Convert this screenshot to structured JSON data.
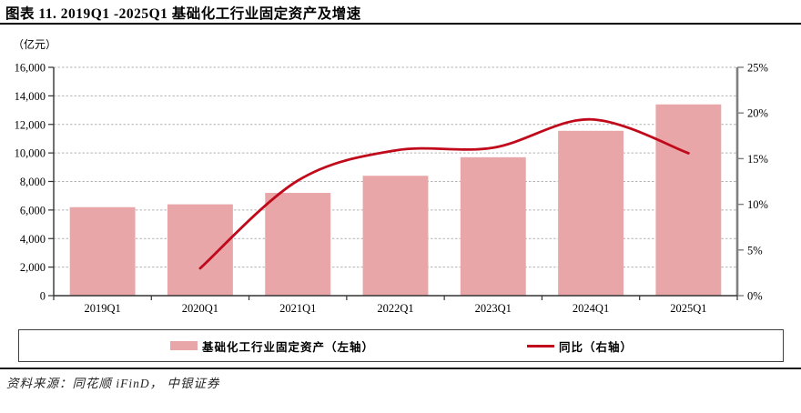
{
  "title": "图表 11. 2019Q1 -2025Q1 基础化工行业固定资产及增速",
  "source": "资料来源：同花顺 iFinD， 中银证券",
  "colors": {
    "bar": "#E9A6A9",
    "line": "#C00A1B",
    "grid": "#B3B3B3",
    "axis_left": "#333333",
    "axis_bottom": "#333333",
    "axis_right": "#7F7F7F",
    "text": "#000000"
  },
  "chart_data": {
    "type": "bar",
    "title": "2019Q1-2025Q1 基础化工行业固定资产及增速",
    "categories": [
      "2019Q1",
      "2020Q1",
      "2021Q1",
      "2022Q1",
      "2023Q1",
      "2024Q1",
      "2025Q1"
    ],
    "series": [
      {
        "name": "基础化工行业固定资产（左轴）",
        "type": "bar",
        "axis": "left",
        "color": "#E9A6A9",
        "values": [
          6200,
          6400,
          7200,
          8400,
          9700,
          11550,
          13400
        ]
      },
      {
        "name": "同比（右轴）",
        "type": "line",
        "axis": "right",
        "color": "#C00A1B",
        "values": [
          null,
          3.0,
          12.6,
          15.9,
          16.2,
          19.3,
          15.6
        ]
      }
    ],
    "left_axis": {
      "unit_label": "（亿元）",
      "min": 0,
      "max": 16000,
      "step": 2000
    },
    "right_axis": {
      "min": 0,
      "max": 25,
      "step": 5,
      "suffix": "%"
    },
    "grid": "horizontal-dashed",
    "legend_position": "bottom-box"
  }
}
